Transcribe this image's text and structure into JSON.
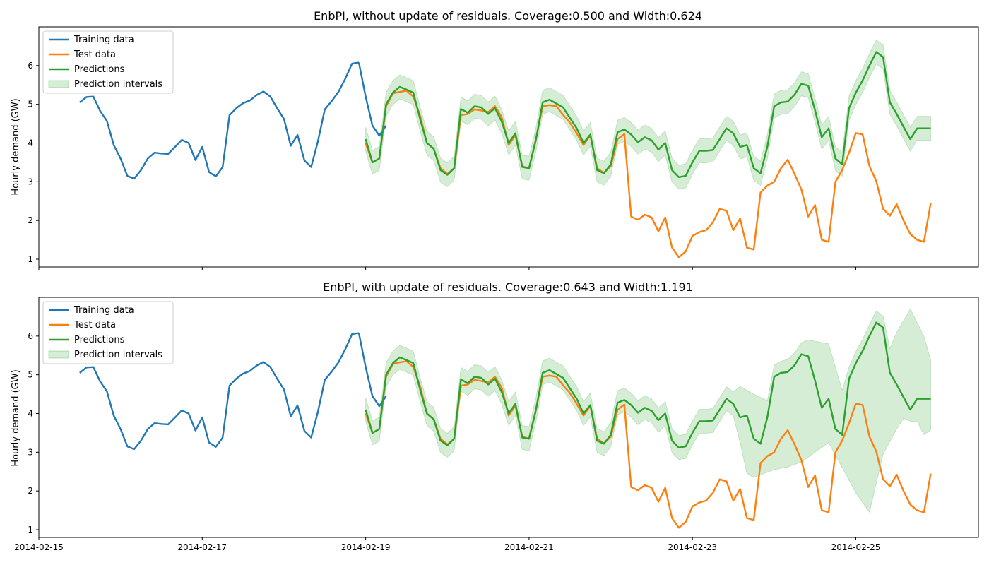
{
  "chart_data": [
    {
      "type": "line",
      "title": "EnbPI, without update of residuals. Coverage:0.500 and Width:0.624",
      "xlabel": "",
      "ylabel": "Hourly demand (GW)",
      "x_unit": "days",
      "x_start": "2014-02-15",
      "xlim": [
        "2014-02-15",
        "2014-02-26T12:00"
      ],
      "ylim": [
        0.8,
        7.0
      ],
      "yticks": [
        1,
        2,
        3,
        4,
        5,
        6
      ],
      "xticks": [
        "2014-02-15",
        "2014-02-17",
        "2014-02-19",
        "2014-02-21",
        "2014-02-23",
        "2014-02-25"
      ],
      "legend": {
        "position": "upper left",
        "entries": [
          "Training data",
          "Test data",
          "Predictions",
          "Prediction intervals"
        ]
      },
      "colors": {
        "train": "#1f77b4",
        "test": "#ff7f0e",
        "pred": "#2ca02c",
        "band": "#2ca02c"
      },
      "train": {
        "name": "Training data",
        "x": [
          "2014-02-15T12:00",
          "2014-02-15T14:00",
          "2014-02-15T16:00",
          "2014-02-15T18:00",
          "2014-02-15T20:00",
          "2014-02-15T22:00",
          "2014-02-16T00:00",
          "2014-02-16T02:00",
          "2014-02-16T04:00",
          "2014-02-16T06:00",
          "2014-02-16T08:00",
          "2014-02-16T10:00",
          "2014-02-16T12:00",
          "2014-02-16T14:00",
          "2014-02-16T16:00",
          "2014-02-16T18:00",
          "2014-02-16T20:00",
          "2014-02-16T22:00",
          "2014-02-17T00:00",
          "2014-02-17T02:00",
          "2014-02-17T04:00",
          "2014-02-17T06:00",
          "2014-02-17T08:00",
          "2014-02-17T10:00",
          "2014-02-17T12:00",
          "2014-02-17T14:00",
          "2014-02-17T16:00",
          "2014-02-17T18:00",
          "2014-02-17T20:00",
          "2014-02-17T22:00",
          "2014-02-18T00:00",
          "2014-02-18T02:00",
          "2014-02-18T04:00",
          "2014-02-18T06:00",
          "2014-02-18T08:00",
          "2014-02-18T10:00",
          "2014-02-18T12:00",
          "2014-02-18T14:00",
          "2014-02-18T16:00",
          "2014-02-18T18:00",
          "2014-02-18T20:00",
          "2014-02-18T22:00"
        ],
        "y": [
          5.05,
          5.19,
          5.2,
          4.83,
          4.57,
          3.95,
          3.6,
          3.15,
          3.08,
          3.3,
          3.6,
          3.75,
          3.73,
          3.72,
          3.9,
          4.08,
          4.0,
          3.56,
          3.9,
          3.25,
          3.14,
          3.38,
          4.72,
          4.9,
          5.03,
          5.1,
          5.24,
          5.33,
          5.2,
          4.9,
          4.62,
          3.93,
          4.21,
          3.55,
          3.38,
          4.05,
          4.87,
          5.08,
          5.32,
          5.66,
          6.05,
          6.08
        ]
      },
      "train_tail": {
        "x": [
          "2014-02-18T22:00",
          "2014-02-19T00:00",
          "2014-02-19T02:00",
          "2014-02-19T04:00",
          "2014-02-19T06:00"
        ],
        "y": [
          6.08,
          5.2,
          4.45,
          4.19,
          4.45
        ]
      },
      "test": {
        "name": "Test data",
        "x": [
          "2014-02-19T00:00",
          "2014-02-19T02:00",
          "2014-02-19T04:00",
          "2014-02-19T06:00",
          "2014-02-19T08:00",
          "2014-02-19T10:00",
          "2014-02-19T12:00",
          "2014-02-19T14:00",
          "2014-02-19T16:00",
          "2014-02-19T18:00",
          "2014-02-19T20:00",
          "2014-02-19T22:00",
          "2014-02-20T00:00",
          "2014-02-20T02:00",
          "2014-02-20T04:00",
          "2014-02-20T06:00",
          "2014-02-20T08:00",
          "2014-02-20T10:00",
          "2014-02-20T12:00",
          "2014-02-20T14:00",
          "2014-02-20T16:00",
          "2014-02-20T18:00",
          "2014-02-20T20:00",
          "2014-02-20T22:00",
          "2014-02-21T00:00",
          "2014-02-21T02:00",
          "2014-02-21T04:00",
          "2014-02-21T06:00",
          "2014-02-21T08:00",
          "2014-02-21T10:00",
          "2014-02-21T12:00",
          "2014-02-21T14:00",
          "2014-02-21T16:00",
          "2014-02-21T18:00",
          "2014-02-21T20:00",
          "2014-02-21T22:00",
          "2014-02-22T00:00",
          "2014-02-22T02:00",
          "2014-02-22T04:00",
          "2014-02-22T06:00",
          "2014-02-22T08:00",
          "2014-02-22T10:00",
          "2014-02-22T12:00",
          "2014-02-22T14:00",
          "2014-02-22T16:00",
          "2014-02-22T18:00",
          "2014-02-22T20:00",
          "2014-02-22T22:00",
          "2014-02-23T00:00",
          "2014-02-23T02:00",
          "2014-02-23T04:00",
          "2014-02-23T06:00",
          "2014-02-23T08:00",
          "2014-02-23T10:00",
          "2014-02-23T12:00",
          "2014-02-23T14:00",
          "2014-02-23T16:00",
          "2014-02-23T18:00",
          "2014-02-23T20:00",
          "2014-02-23T22:00",
          "2014-02-24T00:00",
          "2014-02-24T02:00",
          "2014-02-24T04:00",
          "2014-02-24T06:00",
          "2014-02-24T08:00",
          "2014-02-24T10:00",
          "2014-02-24T12:00",
          "2014-02-24T14:00",
          "2014-02-24T16:00",
          "2014-02-24T18:00",
          "2014-02-24T20:00",
          "2014-02-24T22:00",
          "2014-02-25T00:00",
          "2014-02-25T02:00",
          "2014-02-25T04:00",
          "2014-02-25T06:00",
          "2014-02-25T08:00",
          "2014-02-25T10:00",
          "2014-02-25T12:00",
          "2014-02-25T14:00",
          "2014-02-25T16:00",
          "2014-02-25T18:00",
          "2014-02-25T20:00",
          "2014-02-25T22:00"
        ],
        "y": [
          4.0,
          3.5,
          3.6,
          4.95,
          5.28,
          5.32,
          5.35,
          5.2,
          4.7,
          4.0,
          3.85,
          3.35,
          3.2,
          3.35,
          4.72,
          4.75,
          4.87,
          4.84,
          4.8,
          4.95,
          4.66,
          3.95,
          4.2,
          3.4,
          3.35,
          4.1,
          4.95,
          4.98,
          4.95,
          4.73,
          4.53,
          4.25,
          3.95,
          4.2,
          3.35,
          3.23,
          3.4,
          4.1,
          4.23,
          2.1,
          2.02,
          2.15,
          2.08,
          1.72,
          2.08,
          1.3,
          1.05,
          1.2,
          1.6,
          1.7,
          1.75,
          1.95,
          2.3,
          2.25,
          1.75,
          2.05,
          1.3,
          1.25,
          2.72,
          2.9,
          3.0,
          3.35,
          3.57,
          3.2,
          2.8,
          2.1,
          2.4,
          1.5,
          1.45,
          3.0,
          3.3,
          3.75,
          4.26,
          4.22,
          3.4,
          3.02,
          2.3,
          2.12,
          2.42,
          2.0,
          1.65,
          1.5,
          1.45,
          2.45
        ]
      },
      "pred": {
        "name": "Predictions",
        "y": [
          4.1,
          3.5,
          3.6,
          5.0,
          5.3,
          5.45,
          5.38,
          5.3,
          4.62,
          4.0,
          3.85,
          3.3,
          3.18,
          3.35,
          4.88,
          4.78,
          4.95,
          4.92,
          4.75,
          4.9,
          4.55,
          4.0,
          4.25,
          3.38,
          3.35,
          4.08,
          5.05,
          5.12,
          5.02,
          4.92,
          4.65,
          4.38,
          4.0,
          4.22,
          3.3,
          3.22,
          3.45,
          4.28,
          4.35,
          4.22,
          4.02,
          4.15,
          4.07,
          3.83,
          4.0,
          3.3,
          3.12,
          3.15,
          3.5,
          3.8,
          3.8,
          3.82,
          4.1,
          4.38,
          4.25,
          3.9,
          3.95,
          3.35,
          3.22,
          3.9,
          4.95,
          5.05,
          5.07,
          5.25,
          5.53,
          5.48,
          4.85,
          4.15,
          4.38,
          3.6,
          3.45,
          4.9,
          5.3,
          5.62,
          6.0,
          6.35,
          6.22,
          5.05,
          4.75,
          4.42,
          4.1,
          4.38,
          4.38,
          4.38
        ]
      },
      "interval_halfwidth": [
        0.31,
        0.31
      ]
    },
    {
      "type": "line",
      "title": "EnbPI, with update of residuals. Coverage:0.643 and Width:1.191",
      "xlabel": "",
      "ylabel": "Hourly demand (GW)",
      "x_unit": "days",
      "x_start": "2014-02-15",
      "xlim": [
        "2014-02-15",
        "2014-02-26T12:00"
      ],
      "ylim": [
        0.8,
        7.0
      ],
      "yticks": [
        1,
        2,
        3,
        4,
        5,
        6
      ],
      "xticks": [
        "2014-02-15",
        "2014-02-17",
        "2014-02-19",
        "2014-02-21",
        "2014-02-23",
        "2014-02-25"
      ],
      "xtick_labels": [
        "2014-02-15",
        "2014-02-17",
        "2014-02-19",
        "2014-02-21",
        "2014-02-23",
        "2014-02-25"
      ],
      "legend": {
        "position": "upper left",
        "entries": [
          "Training data",
          "Test data",
          "Predictions",
          "Prediction intervals"
        ]
      },
      "colors": {
        "train": "#1f77b4",
        "test": "#ff7f0e",
        "pred": "#2ca02c",
        "band": "#2ca02c"
      },
      "train_ref": 0,
      "test_ref": 0,
      "pred_ref": 0,
      "interval_lower_override": [
        [
          "2014-02-23T14:00",
          3.25
        ],
        [
          "2014-02-23T16:00",
          2.45
        ],
        [
          "2014-02-23T18:00",
          2.35
        ],
        [
          "2014-02-24T00:00",
          2.55
        ],
        [
          "2014-02-24T04:00",
          2.62
        ],
        [
          "2014-02-24T08:00",
          2.75
        ],
        [
          "2014-02-24T12:00",
          3.0
        ],
        [
          "2014-02-24T16:00",
          3.25
        ],
        [
          "2014-02-25T00:00",
          1.95
        ],
        [
          "2014-02-25T04:00",
          1.45
        ],
        [
          "2014-02-25T08:00",
          2.95
        ],
        [
          "2014-02-25T12:00",
          3.6
        ],
        [
          "2014-02-25T16:00",
          4.15
        ],
        [
          "2014-02-25T20:00",
          3.45
        ],
        [
          "2014-02-26T00:00",
          3.7
        ]
      ],
      "interval_upper_override": [
        [
          "2014-02-23T14:00",
          4.7
        ],
        [
          "2014-02-23T18:00",
          4.5
        ],
        [
          "2014-02-24T00:00",
          4.25
        ],
        [
          "2014-02-24T04:00",
          5.4
        ],
        [
          "2014-02-24T10:00",
          5.9
        ],
        [
          "2014-02-24T16:00",
          5.8
        ],
        [
          "2014-02-24T20:00",
          4.6
        ],
        [
          "2014-02-25T04:00",
          4.4
        ],
        [
          "2014-02-25T12:00",
          6.1
        ],
        [
          "2014-02-25T16:00",
          6.7
        ],
        [
          "2014-02-25T20:00",
          6.0
        ],
        [
          "2014-02-26T00:00",
          4.75
        ]
      ]
    }
  ]
}
